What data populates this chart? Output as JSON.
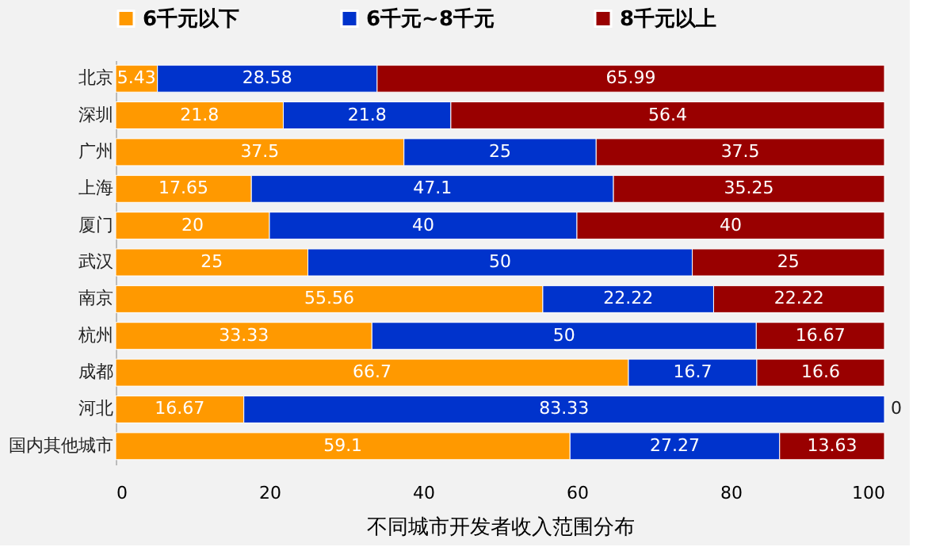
{
  "chart_data": {
    "type": "bar",
    "orientation": "horizontal",
    "stacked": true,
    "xlabel": "不同城市开发者收入范围分布",
    "categories": [
      "北京",
      "深圳",
      "广州",
      "上海",
      "厦门",
      "武汉",
      "南京",
      "杭州",
      "成都",
      "河北",
      "国内其他城市"
    ],
    "series": [
      {
        "name": "6千元以下",
        "color": "#ff9900",
        "values": [
          5.43,
          21.8,
          37.5,
          17.65,
          20,
          25,
          55.56,
          33.33,
          66.7,
          16.67,
          59.1
        ]
      },
      {
        "name": "6千元~8千元",
        "color": "#0033cc",
        "values": [
          28.58,
          21.8,
          25,
          47.1,
          40,
          50,
          22.22,
          50,
          16.7,
          83.33,
          27.27
        ]
      },
      {
        "name": "8千元以上",
        "color": "#990000",
        "values": [
          65.99,
          56.4,
          37.5,
          35.25,
          40,
          25,
          22.22,
          16.67,
          16.6,
          0,
          13.63
        ]
      }
    ],
    "xlim": [
      0,
      100
    ],
    "xticks": [
      0,
      20,
      40,
      60,
      80,
      100
    ],
    "grid": false,
    "legend": "top",
    "data_labels": true
  }
}
